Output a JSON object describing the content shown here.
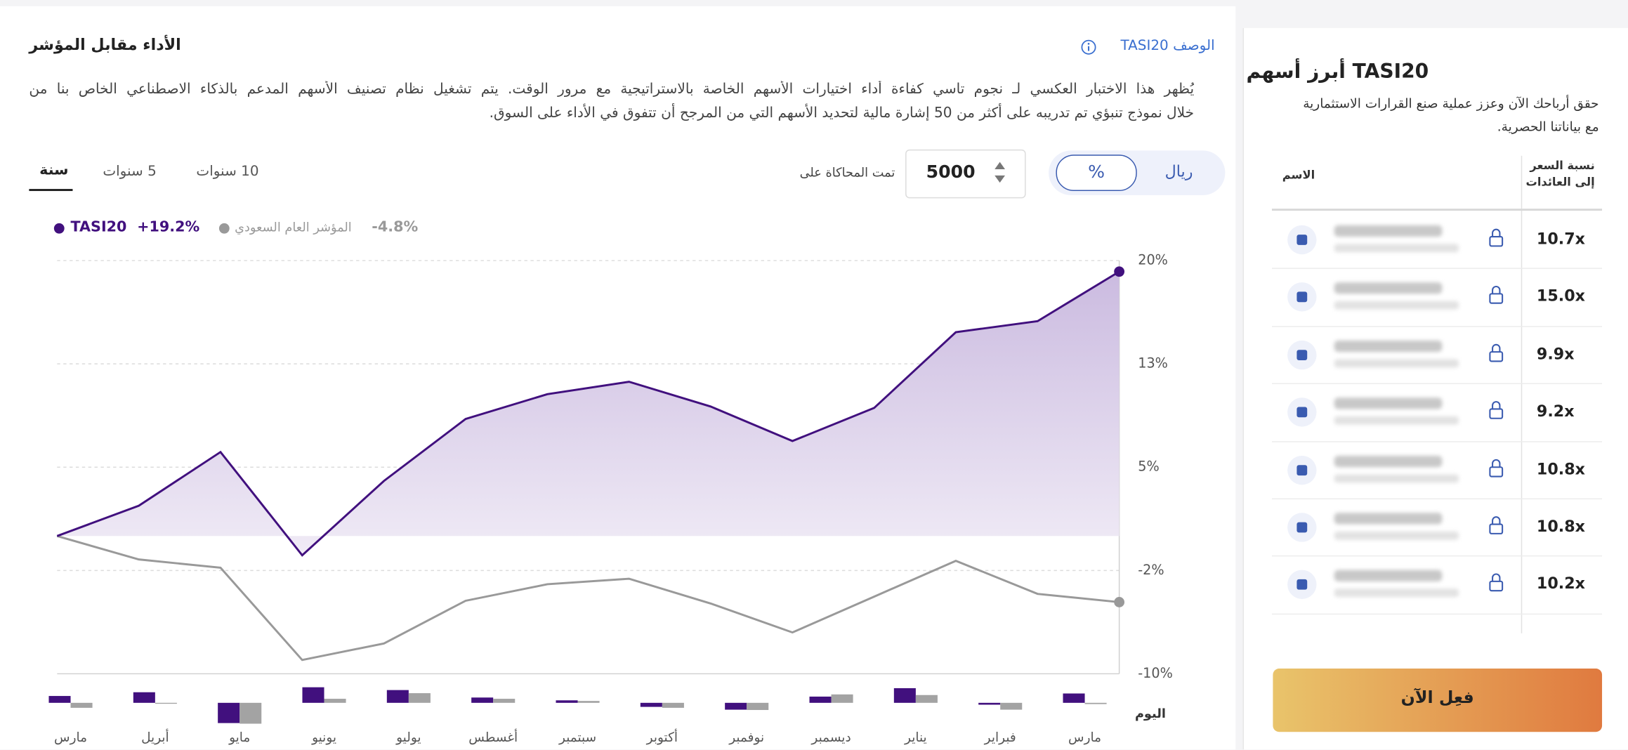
{
  "header": {
    "title": "الأداء مقابل المؤشر",
    "description_link": "الوصف TASI20",
    "description": [
      "يُظهر هذا الاختبار العكسي لـ نجوم تاسي كفاءة أداء اختيارات الأسهم الخاصة بالاستراتيجية مع مرور الوقت. يتم تشغيل نظام تصنيف الأسهم المدعم بالذكاء الاصطناعي الخاص بنا من",
      "خلال نموذج تنبؤي تم تدريبه على أكثر من 50 إشارة مالية لتحديد الأسهم التي من المرجح أن تتفوق في الأداء على السوق."
    ]
  },
  "controls": {
    "tabs": [
      "سنة",
      "5 سنوات",
      "10 سنوات"
    ],
    "simulation_label": "تمت المحاكاة على",
    "simulation_amount": "5000",
    "units": [
      "%",
      "ريال"
    ]
  },
  "chart_data": {
    "type": "line",
    "categories": [
      "مارس",
      "أبريل",
      "مايو",
      "يونيو",
      "يوليو",
      "أغسطس",
      "سبتمبر",
      "أكتوبر",
      "نوفمبر",
      "ديسمبر",
      "يناير",
      "فبراير",
      "مارس",
      "اليوم"
    ],
    "ylim": [
      -10,
      20
    ],
    "yticks": [
      {
        "value": -10,
        "label": "-10%"
      },
      {
        "value": -2.5,
        "label": "-2%"
      },
      {
        "value": 5,
        "label": "5%"
      },
      {
        "value": 12.5,
        "label": "13%"
      },
      {
        "value": 20,
        "label": "20%"
      }
    ],
    "grid": true,
    "series": [
      {
        "name": "TASI20",
        "total_return": "+19.2%",
        "color": "#41107e",
        "values": [
          0,
          2.2,
          6.1,
          -1.4,
          4.0,
          8.5,
          10.3,
          11.2,
          9.4,
          6.9,
          9.3,
          14.8,
          15.6,
          19.2
        ]
      },
      {
        "name": "المؤشر العام السعودي",
        "total_return": "-4.8%",
        "color": "#999999",
        "values": [
          0,
          -1.7,
          -2.3,
          -9.0,
          -7.8,
          -4.7,
          -3.5,
          -3.1,
          -4.9,
          -7.0,
          -4.4,
          -1.8,
          -4.2,
          -4.8
        ]
      }
    ],
    "monthly_series": [
      {
        "color": "#41107e",
        "values": [
          2.2,
          3.4,
          -6.5,
          5.0,
          4.1,
          1.7,
          0.8,
          -1.3,
          -2.2,
          2.0,
          4.7,
          -0.6,
          3.0
        ]
      },
      {
        "color": "#a3a3a3",
        "values": [
          -1.6,
          -0.3,
          -6.7,
          1.3,
          3.1,
          1.3,
          0.6,
          -1.6,
          -2.3,
          2.7,
          2.5,
          -2.2,
          -0.4
        ]
      }
    ]
  },
  "sidebar": {
    "title": "TASI20 أبرز أسهم",
    "subtitle": [
      "حقق أرباحك الآن وعزز عملية صنع القرارات الاستثمارية",
      "مع بياناتنا الحصرية."
    ],
    "pe_header": [
      "نسبة السعر",
      "إلى العائدات"
    ],
    "name_header": "الاسم",
    "rows": [
      "10.7x",
      "15.0x",
      "9.9x",
      "9.2x",
      "10.8x",
      "10.8x",
      "10.2x"
    ],
    "cta": "فعِل الآن"
  }
}
